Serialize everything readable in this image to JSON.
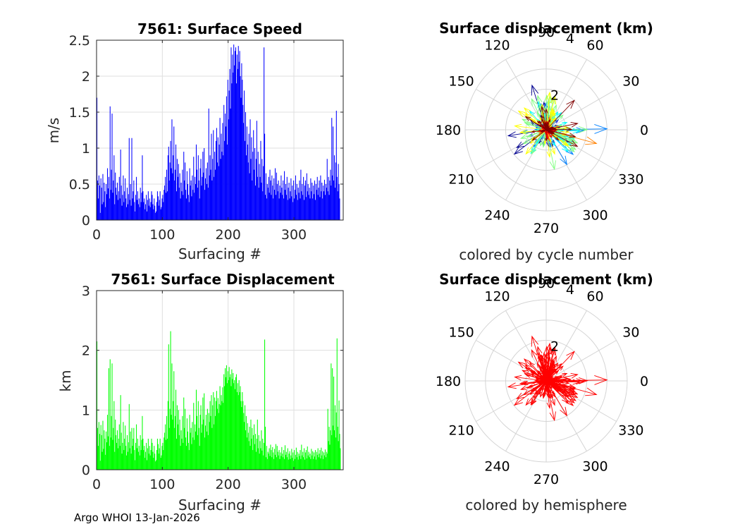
{
  "footer": "Argo WHOI 13-Jan-2026",
  "chart_data": [
    {
      "id": "speed",
      "type": "bar",
      "title": "7561: Surface Speed",
      "xlabel": "Surfacing #",
      "ylabel": "m/s",
      "xlim": [
        0,
        375
      ],
      "ylim": [
        0,
        2.5
      ],
      "xticks": [
        0,
        100,
        200,
        300
      ],
      "yticks": [
        0,
        0.5,
        1,
        1.5,
        2,
        2.5
      ],
      "ytick_labels": [
        "0",
        "0.5",
        "1",
        "1.5",
        "2",
        "2.5"
      ],
      "grid": true,
      "color": "#0000ff",
      "values": [
        1.7,
        0.55,
        0.3,
        0.62,
        0.48,
        0.1,
        0.58,
        0.45,
        0.22,
        0.64,
        0.25,
        0.52,
        0.4,
        0.18,
        0.5,
        0.36,
        0.72,
        0.44,
        0.6,
        0.3,
        1.58,
        0.42,
        0.7,
        1.48,
        0.38,
        0.55,
        0.9,
        0.22,
        0.66,
        0.45,
        0.35,
        0.52,
        0.28,
        0.4,
        0.6,
        0.3,
        0.98,
        0.48,
        0.2,
        0.35,
        0.62,
        0.25,
        0.4,
        0.58,
        0.3,
        0.18,
        0.45,
        0.22,
        0.36,
        1.14,
        0.28,
        0.5,
        0.2,
        1.14,
        0.3,
        0.4,
        0.55,
        0.25,
        0.12,
        0.35,
        0.6,
        0.28,
        0.4,
        0.22,
        0.3,
        0.18,
        0.45,
        0.25,
        0.38,
        0.9,
        0.4,
        0.25,
        0.3,
        0.15,
        0.22,
        0.35,
        0.12,
        0.28,
        0.4,
        0.2,
        0.3,
        0.18,
        0.25,
        0.4,
        0.35,
        0.22,
        0.15,
        0.3,
        0.2,
        0.1,
        0.12,
        0.25,
        0.4,
        0.33,
        0.2,
        0.28,
        0.4,
        0.15,
        0.18,
        0.3,
        0.35,
        0.25,
        0.42,
        0.48,
        0.6,
        0.38,
        0.7,
        0.4,
        0.9,
        1.02,
        0.55,
        0.8,
        1.1,
        0.72,
        1.4,
        0.65,
        0.9,
        1.3,
        0.55,
        0.7,
        1.05,
        0.4,
        0.85,
        0.6,
        0.78,
        0.45,
        0.65,
        0.3,
        0.52,
        0.4,
        0.7,
        0.35,
        0.95,
        0.55,
        0.8,
        0.42,
        0.3,
        0.68,
        0.5,
        0.35,
        0.25,
        0.72,
        0.48,
        0.55,
        0.33,
        0.62,
        0.42,
        0.88,
        0.38,
        0.6,
        0.5,
        1.05,
        0.7,
        0.45,
        0.9,
        0.55,
        0.3,
        0.72,
        0.85,
        0.48,
        0.6,
        0.95,
        0.66,
        1.0,
        0.42,
        0.58,
        0.72,
        0.5,
        0.8,
        0.45,
        1.55,
        0.62,
        0.9,
        0.7,
        1.2,
        0.55,
        0.85,
        1.25,
        0.6,
        0.95,
        0.7,
        1.1,
        1.28,
        0.8,
        1.15,
        0.75,
        1.05,
        1.42,
        0.85,
        1.2,
        0.95,
        1.35,
        0.9,
        1.6,
        1.1,
        1.48,
        1.3,
        1.72,
        1.05,
        1.95,
        1.4,
        1.8,
        2.1,
        1.55,
        2.4,
        1.9,
        2.3,
        2.05,
        2.44,
        2.15,
        2.35,
        2.4,
        1.9,
        2.3,
        2.1,
        2.42,
        2.2,
        2.35,
        2.0,
        1.7,
        2.18,
        1.95,
        1.6,
        1.35,
        1.8,
        1.1,
        1.5,
        0.9,
        1.3,
        1.05,
        0.8,
        1.2,
        0.65,
        1.4,
        0.85,
        1.15,
        0.55,
        0.95,
        1.25,
        0.7,
        1.0,
        0.48,
        0.85,
        1.38,
        0.6,
        0.95,
        0.45,
        0.78,
        0.6,
        1.1,
        0.52,
        0.85,
        0.4,
        0.75,
        2.4,
        1.2,
        0.35,
        0.65,
        0.3,
        0.5,
        0.45,
        0.6,
        0.38,
        0.7,
        0.55,
        0.35,
        0.62,
        0.48,
        0.3,
        0.58,
        0.42,
        0.72,
        0.35,
        0.66,
        0.5,
        0.4,
        0.55,
        0.3,
        0.48,
        0.38,
        0.62,
        0.45,
        0.35,
        0.55,
        0.3,
        0.68,
        0.42,
        0.5,
        0.35,
        0.6,
        0.28,
        0.45,
        0.52,
        0.3,
        0.4,
        0.58,
        0.33,
        0.48,
        0.25,
        0.55,
        0.3,
        0.42,
        0.62,
        0.35,
        0.5,
        0.28,
        0.45,
        0.38,
        0.55,
        0.3,
        0.7,
        0.4,
        0.5,
        0.35,
        0.6,
        0.28,
        0.48,
        0.55,
        0.32,
        0.65,
        0.4,
        0.5,
        0.35,
        0.45,
        0.3,
        0.58,
        0.4,
        0.52,
        0.3,
        0.48,
        0.36,
        0.55,
        0.28,
        0.5,
        0.42,
        0.6,
        0.35,
        0.45,
        0.55,
        0.32,
        0.62,
        0.4,
        0.52,
        0.3,
        0.48,
        0.4,
        0.56,
        0.35,
        0.5,
        0.45,
        0.85,
        0.4,
        0.6,
        0.35,
        0.55,
        0.7,
        0.48,
        1.42,
        0.62,
        1.3,
        0.55,
        0.9,
        0.45,
        0.8,
        1.52,
        0.6,
        0.4,
        0.78,
        0.5,
        0.3
      ]
    },
    {
      "id": "disp",
      "type": "bar",
      "title": "7561: Surface Displacement",
      "xlabel": "Surfacing #",
      "ylabel": "km",
      "xlim": [
        0,
        375
      ],
      "ylim": [
        0,
        3
      ],
      "xticks": [
        0,
        100,
        200,
        300
      ],
      "yticks": [
        0,
        1,
        2,
        3
      ],
      "ytick_labels": [
        "0",
        "1",
        "2",
        "3"
      ],
      "grid": true,
      "color": "#00ff00",
      "values": [
        2.15,
        0.7,
        0.4,
        0.8,
        0.6,
        0.15,
        0.75,
        0.58,
        0.3,
        0.82,
        0.35,
        0.66,
        0.52,
        0.25,
        0.64,
        0.46,
        0.92,
        0.56,
        1.7,
        0.4,
        1.85,
        0.54,
        0.9,
        1.78,
        0.5,
        0.7,
        1.15,
        0.3,
        0.84,
        0.58,
        0.45,
        0.66,
        0.36,
        0.52,
        0.76,
        0.4,
        1.25,
        0.62,
        0.27,
        0.45,
        0.8,
        0.33,
        0.52,
        0.74,
        0.4,
        0.24,
        0.58,
        0.3,
        0.46,
        1.1,
        0.36,
        0.64,
        0.27,
        0.7,
        0.4,
        0.52,
        0.7,
        0.33,
        0.16,
        0.45,
        0.76,
        0.36,
        0.52,
        0.3,
        0.4,
        0.24,
        0.58,
        0.33,
        0.5,
        0.9,
        0.52,
        0.33,
        0.4,
        0.2,
        0.3,
        0.45,
        0.16,
        0.36,
        0.52,
        0.27,
        0.4,
        0.24,
        0.33,
        0.52,
        0.45,
        0.3,
        0.2,
        0.4,
        0.27,
        0.14,
        0.16,
        0.33,
        0.52,
        0.43,
        0.27,
        0.36,
        0.52,
        0.2,
        0.24,
        0.4,
        0.45,
        0.33,
        0.54,
        0.62,
        0.76,
        0.5,
        0.9,
        0.52,
        1.15,
        2.1,
        0.7,
        1.02,
        2.32,
        0.92,
        1.78,
        0.84,
        1.15,
        1.65,
        0.7,
        0.9,
        1.34,
        0.52,
        1.08,
        0.76,
        1.0,
        0.58,
        0.84,
        0.4,
        0.66,
        0.52,
        0.9,
        0.45,
        1.21,
        0.7,
        1.02,
        0.54,
        0.4,
        0.86,
        0.64,
        0.45,
        0.33,
        0.92,
        0.62,
        0.7,
        0.43,
        0.8,
        0.54,
        1.12,
        0.5,
        0.76,
        0.64,
        1.34,
        0.9,
        0.58,
        1.15,
        0.7,
        0.4,
        0.92,
        1.08,
        0.62,
        0.76,
        1.21,
        0.84,
        1.28,
        0.54,
        0.74,
        0.92,
        0.64,
        1.02,
        0.58,
        0.95,
        0.8,
        1.15,
        0.9,
        1.25,
        0.7,
        1.08,
        1.3,
        0.76,
        1.21,
        0.9,
        1.15,
        1.32,
        1.02,
        1.2,
        0.95,
        1.1,
        1.4,
        1.08,
        1.25,
        1.15,
        1.38,
        1.12,
        1.6,
        1.4,
        1.7,
        1.55,
        1.75,
        1.45,
        1.65,
        1.5,
        1.72,
        1.55,
        1.6,
        1.4,
        1.68,
        1.52,
        1.62,
        1.45,
        1.5,
        1.35,
        1.55,
        1.6,
        1.3,
        1.45,
        1.25,
        1.5,
        1.3,
        1.4,
        1.15,
        1.05,
        1.3,
        1.15,
        0.95,
        0.8,
        1.08,
        0.66,
        0.9,
        0.54,
        0.78,
        0.62,
        0.48,
        0.72,
        0.4,
        0.84,
        0.52,
        0.7,
        0.33,
        0.58,
        0.76,
        0.43,
        0.6,
        0.3,
        0.52,
        0.84,
        0.36,
        0.58,
        0.27,
        0.48,
        0.36,
        0.66,
        0.32,
        0.52,
        0.24,
        0.45,
        2.18,
        0.72,
        0.21,
        0.4,
        0.18,
        0.3,
        0.27,
        0.36,
        0.23,
        0.42,
        0.33,
        0.21,
        0.38,
        0.29,
        0.18,
        0.35,
        0.25,
        0.43,
        0.21,
        0.4,
        0.3,
        0.24,
        0.33,
        0.18,
        0.29,
        0.23,
        0.38,
        0.27,
        0.21,
        0.33,
        0.18,
        0.41,
        0.25,
        0.3,
        0.21,
        0.36,
        0.17,
        0.27,
        0.31,
        0.18,
        0.24,
        0.35,
        0.2,
        0.29,
        0.15,
        0.33,
        0.18,
        0.25,
        0.37,
        0.21,
        0.3,
        0.17,
        0.27,
        0.23,
        0.33,
        0.18,
        0.42,
        0.24,
        0.3,
        0.21,
        0.36,
        0.17,
        0.29,
        0.33,
        0.19,
        0.39,
        0.24,
        0.3,
        0.21,
        0.27,
        0.18,
        0.35,
        0.24,
        0.31,
        0.18,
        0.29,
        0.22,
        0.33,
        0.17,
        0.3,
        0.25,
        0.36,
        0.21,
        0.27,
        0.33,
        0.19,
        0.37,
        0.24,
        0.31,
        0.18,
        0.29,
        0.24,
        0.34,
        0.21,
        0.3,
        0.27,
        1.02,
        0.48,
        0.72,
        0.42,
        0.66,
        1.78,
        0.58,
        1.7,
        0.74,
        1.56,
        0.66,
        1.08,
        0.54,
        0.96,
        2.2,
        0.72,
        0.48,
        1.16,
        0.6,
        0.36
      ]
    },
    {
      "id": "polar1",
      "type": "polar-quiver",
      "title": "Surface displacement (km)",
      "caption": "colored by cycle number",
      "rlim": [
        0,
        4
      ],
      "rtick_labels": [
        "2",
        "4"
      ],
      "angle_labels": [
        "0",
        "30",
        "60",
        "90",
        "120",
        "150",
        "180",
        "210",
        "240",
        "270",
        "300",
        "330"
      ],
      "colormap": [
        "#00008f",
        "#0000ff",
        "#0080ff",
        "#00ffff",
        "#80ff80",
        "#ffff00",
        "#ff8000",
        "#ff0000",
        "#800000"
      ]
    },
    {
      "id": "polar2",
      "type": "polar-quiver",
      "title": "Surface displacement (km)",
      "caption": "colored by hemisphere",
      "rlim": [
        0,
        4
      ],
      "rtick_labels": [
        "2",
        "4"
      ],
      "angle_labels": [
        "0",
        "30",
        "60",
        "90",
        "120",
        "150",
        "180",
        "210",
        "240",
        "270",
        "300",
        "330"
      ],
      "color": "#ff0000"
    }
  ]
}
